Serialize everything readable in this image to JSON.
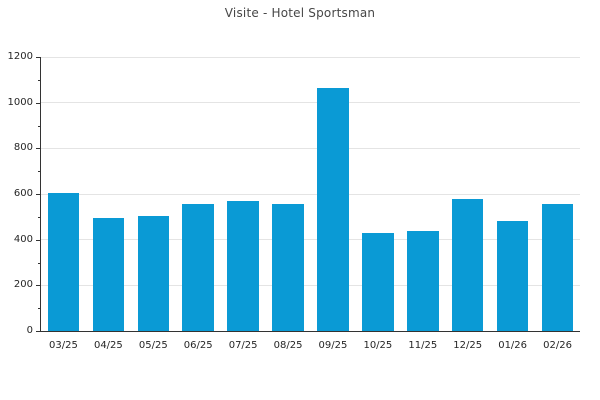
{
  "title": "Visite - Hotel Sportsman",
  "colors": {
    "bar": "#0a9ad5",
    "grid": "#e4e4e4",
    "axis": "#333333",
    "tick_label": "#262626",
    "title_text": "#474747",
    "background": "#ffffff"
  },
  "chart_data": {
    "type": "bar",
    "title": "Visite - Hotel Sportsman",
    "categories": [
      "03/25",
      "04/25",
      "05/25",
      "06/25",
      "07/25",
      "08/25",
      "09/25",
      "10/25",
      "11/25",
      "12/25",
      "01/26",
      "02/26"
    ],
    "values": [
      605,
      495,
      505,
      555,
      570,
      555,
      1065,
      430,
      440,
      580,
      480,
      555
    ],
    "xlabel": "",
    "ylabel": "",
    "ylim": [
      0,
      1200
    ],
    "yticks": [
      0,
      200,
      400,
      600,
      800,
      1000,
      1200
    ],
    "minor_ytick_step": 100,
    "grid": true,
    "legend": false
  }
}
